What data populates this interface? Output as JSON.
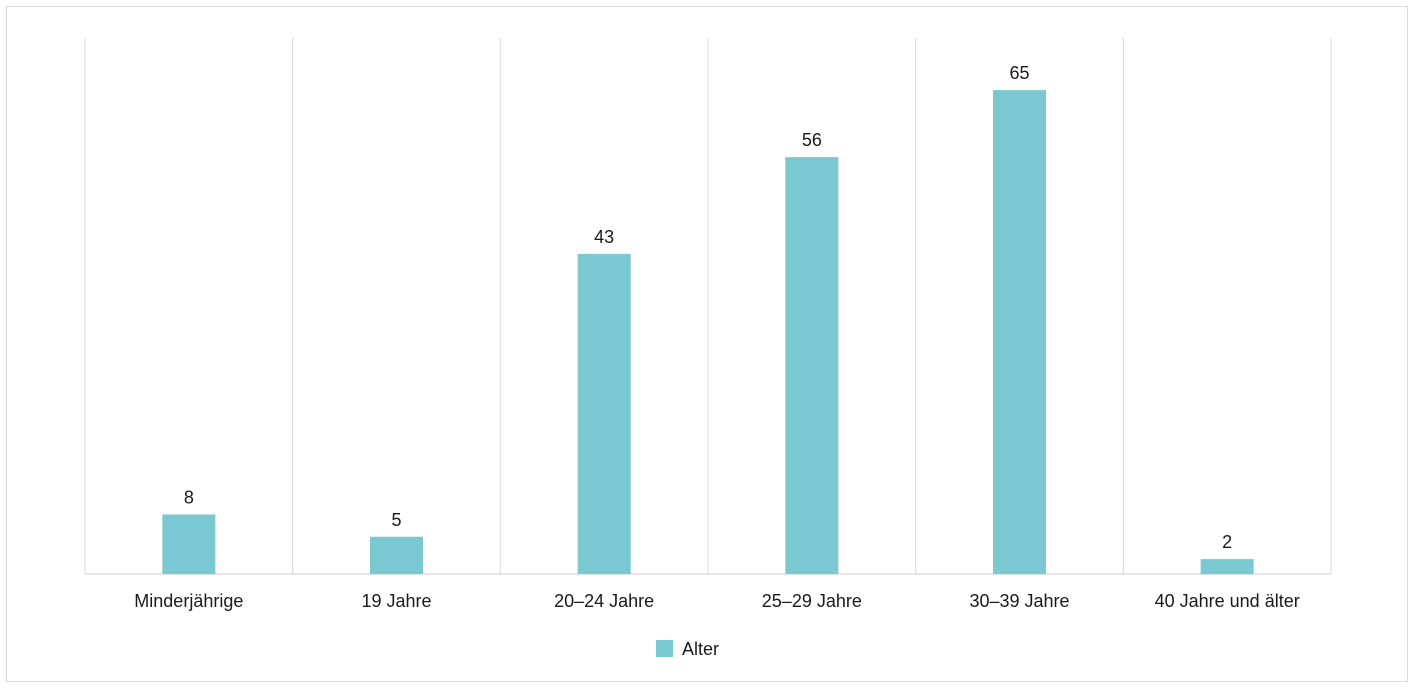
{
  "chart_data": {
    "type": "bar",
    "categories": [
      "Minderjährige",
      "19 Jahre",
      "20–24 Jahre",
      "25–29 Jahre",
      "30–39 Jahre",
      "40 Jahre und älter"
    ],
    "series": [
      {
        "name": "Alter",
        "values": [
          8,
          5,
          43,
          56,
          65,
          2
        ],
        "color": "#7ac8d2"
      }
    ],
    "ylim": [
      0,
      72
    ],
    "grid": {
      "vertical": true,
      "horizontal": false
    },
    "legend": {
      "position": "bottom-center"
    },
    "data_labels": true
  }
}
